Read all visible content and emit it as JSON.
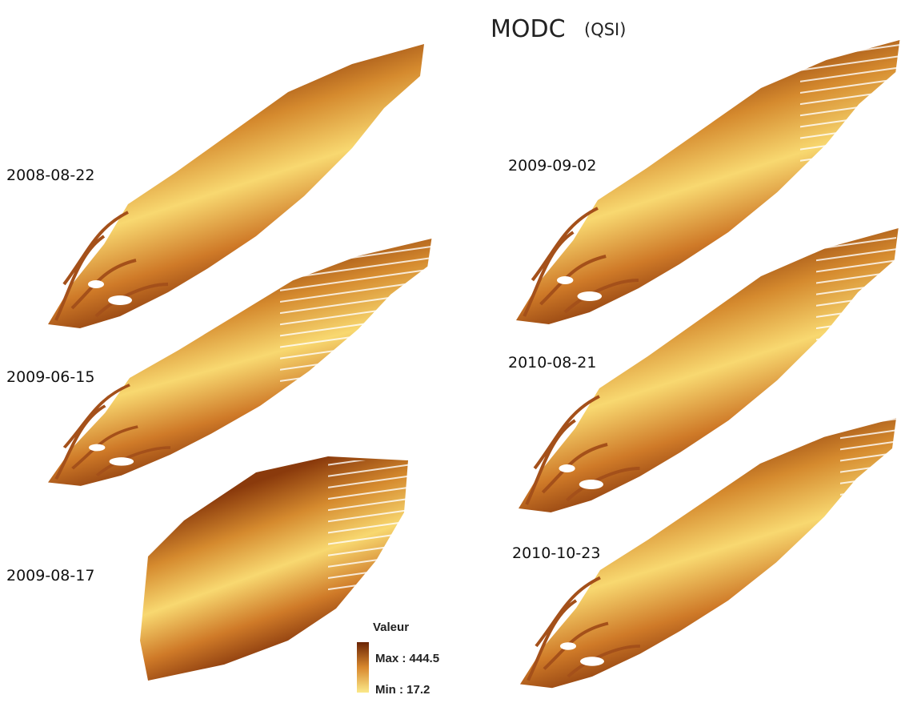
{
  "title": "MODC",
  "subtitle": "(QSI)",
  "maps": [
    {
      "date": "2008-08-22"
    },
    {
      "date": "2009-06-15"
    },
    {
      "date": "2009-08-17"
    },
    {
      "date": "2009-09-02"
    },
    {
      "date": "2010-08-21"
    },
    {
      "date": "2010-10-23"
    }
  ],
  "legend": {
    "title": "Valeur",
    "max": "Max : 444.5",
    "min": "Min : 17.2"
  }
}
